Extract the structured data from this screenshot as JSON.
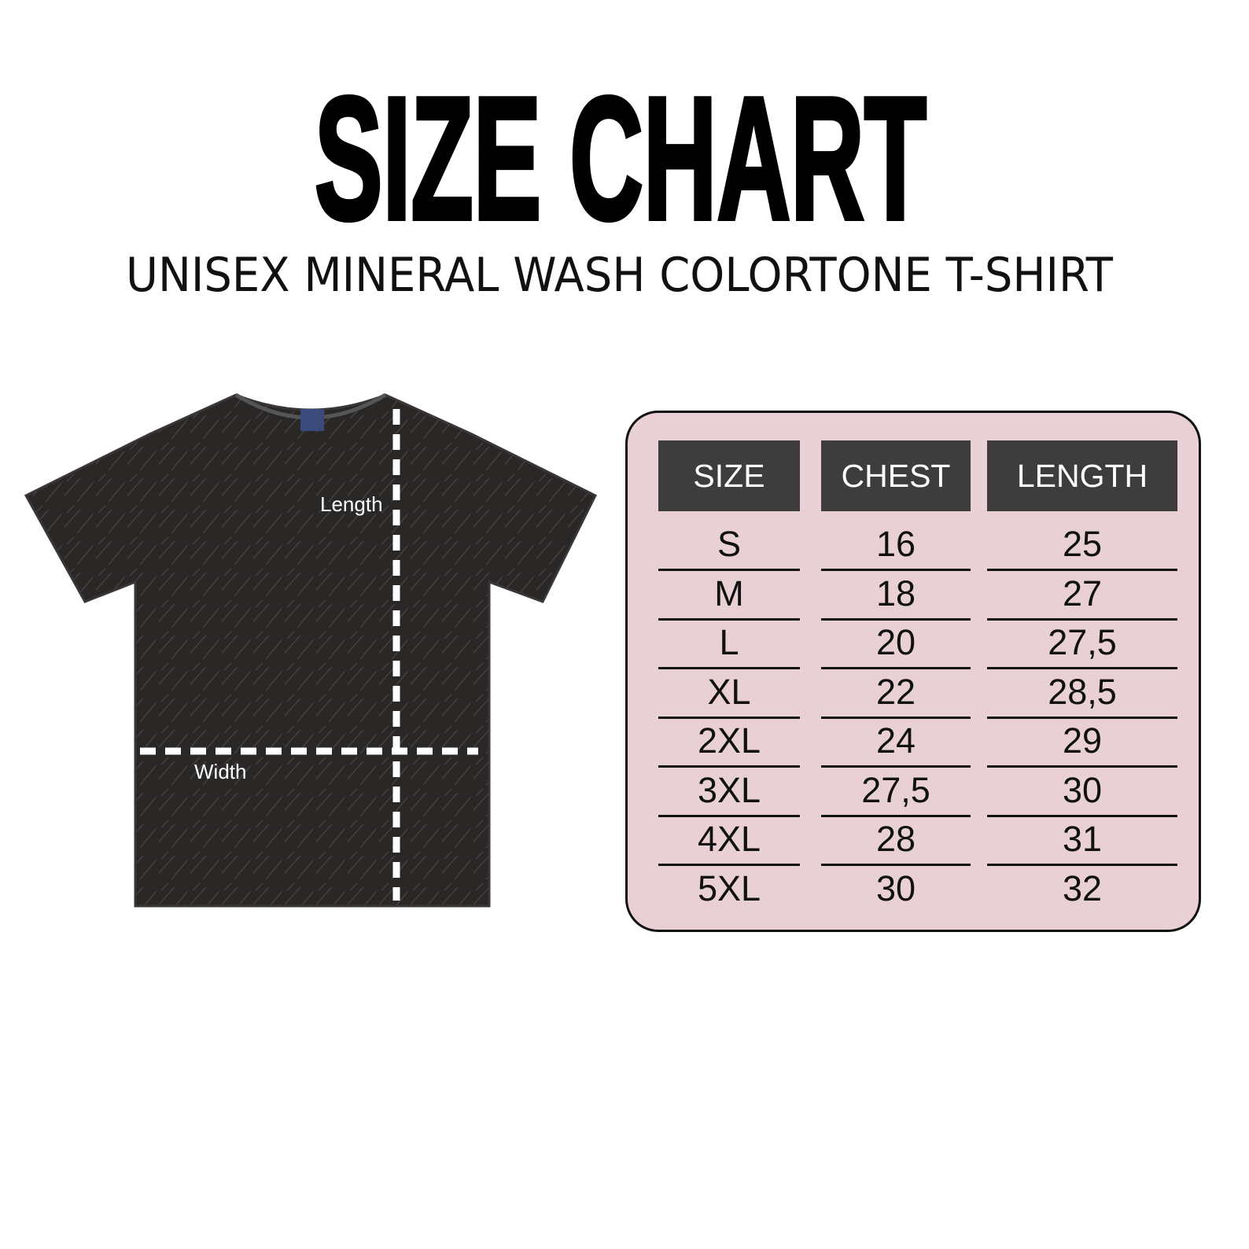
{
  "title": "SIZE CHART",
  "subtitle": "UNISEX MINERAL WASH COLORTONE T-SHIRT",
  "diagram": {
    "length_label": "Length",
    "width_label": "Width",
    "shirt_color": "#2a2727"
  },
  "table": {
    "background": "#e9d0d5",
    "header_color": "#3d3d3d",
    "headers": [
      "SIZE",
      "CHEST",
      "LENGTH"
    ],
    "rows": [
      [
        "S",
        "16",
        "25"
      ],
      [
        "M",
        "18",
        "27"
      ],
      [
        "L",
        "20",
        "27,5"
      ],
      [
        "XL",
        "22",
        "28,5"
      ],
      [
        "2XL",
        "24",
        "29"
      ],
      [
        "3XL",
        "27,5",
        "30"
      ],
      [
        "4XL",
        "28",
        "31"
      ],
      [
        "5XL",
        "30",
        "32"
      ]
    ]
  }
}
